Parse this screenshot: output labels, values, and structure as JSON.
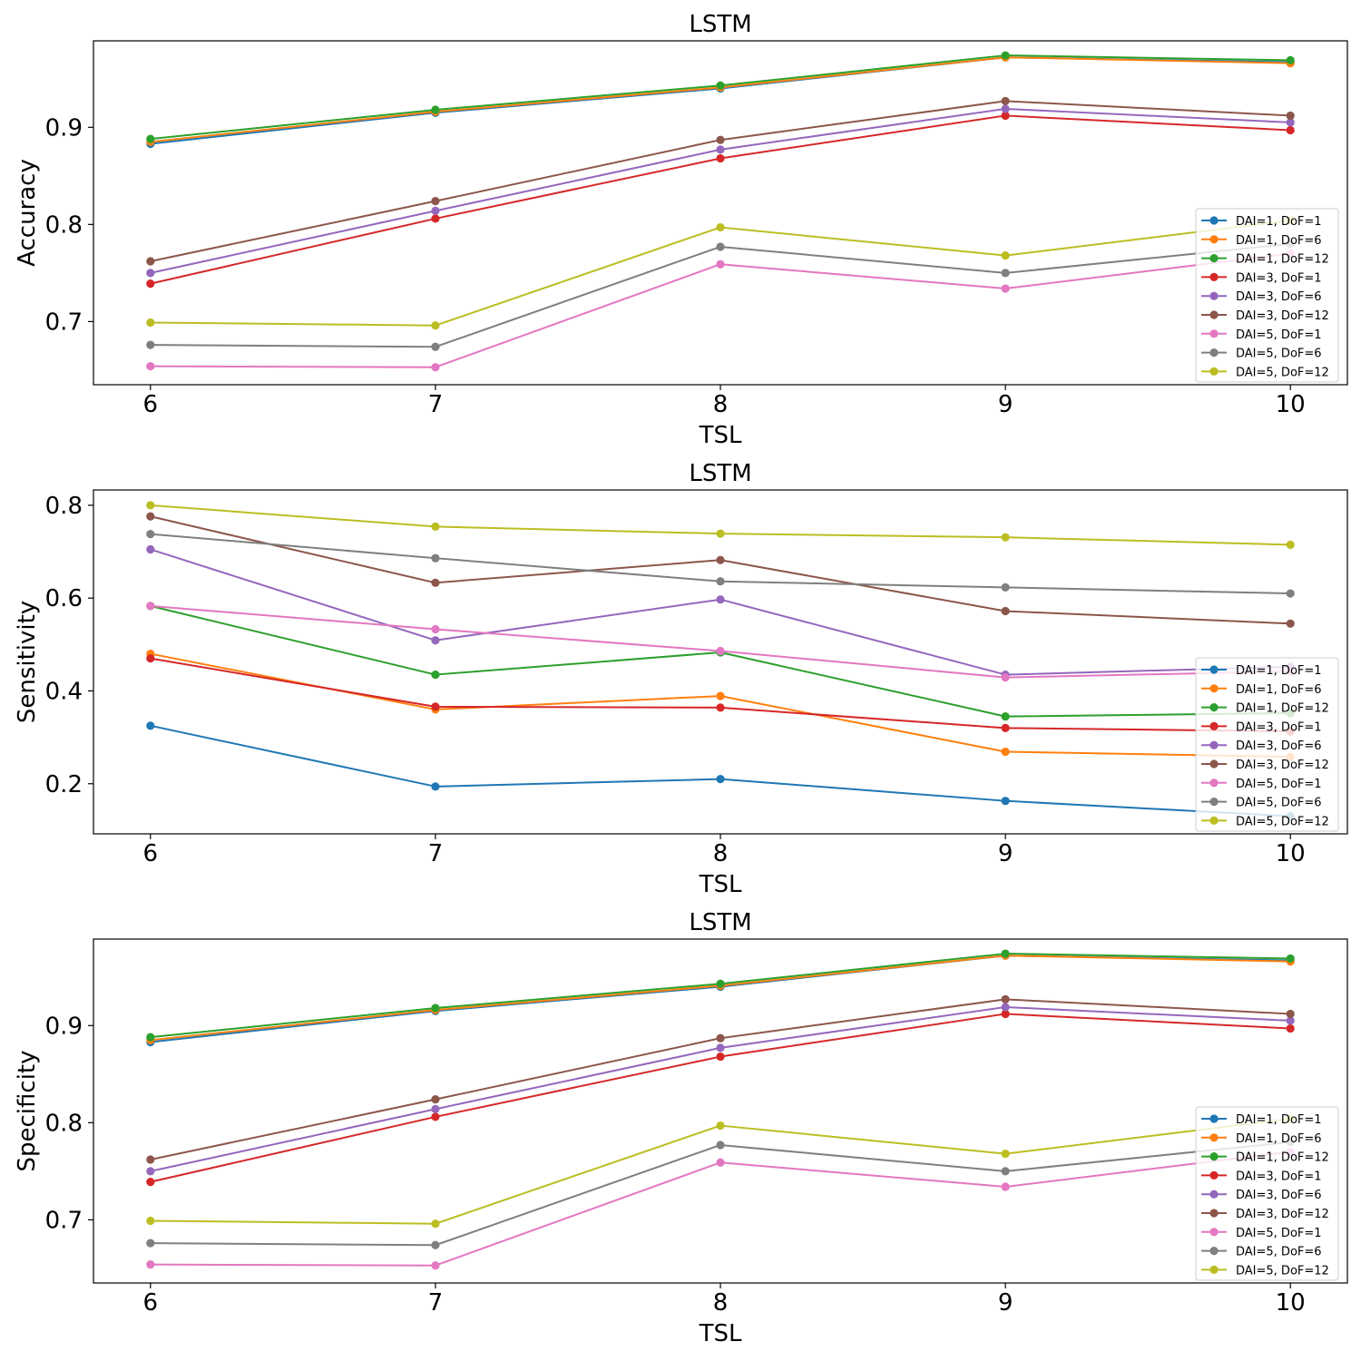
{
  "chart_data": [
    {
      "type": "line",
      "title": "LSTM",
      "xlabel": "TSL",
      "ylabel": "Accuracy",
      "x": [
        6,
        7,
        8,
        9,
        10
      ],
      "xticks": [
        "6",
        "7",
        "8",
        "9",
        "10"
      ],
      "xlim": [
        5.8,
        10.2
      ],
      "ylim": [
        0.635,
        0.989
      ],
      "yticks": [
        0.7,
        0.8,
        0.9
      ],
      "ytick_labels": [
        "0.7",
        "0.8",
        "0.9"
      ],
      "grid": false,
      "legend_position": "right",
      "series": [
        {
          "name": "DAI=1, DoF=1",
          "color": "#1f77b4",
          "values": [
            0.883,
            0.915,
            0.94,
            0.972,
            0.967
          ]
        },
        {
          "name": "DAI=1, DoF=6",
          "color": "#ff7f0e",
          "values": [
            0.885,
            0.916,
            0.941,
            0.972,
            0.966
          ]
        },
        {
          "name": "DAI=1, DoF=12",
          "color": "#2ca02c",
          "values": [
            0.888,
            0.918,
            0.943,
            0.974,
            0.969
          ]
        },
        {
          "name": "DAI=3, DoF=1",
          "color": "#d62728",
          "values": [
            0.739,
            0.806,
            0.868,
            0.912,
            0.897
          ]
        },
        {
          "name": "DAI=3, DoF=6",
          "color": "#9467bd",
          "values": [
            0.75,
            0.814,
            0.877,
            0.919,
            0.905
          ]
        },
        {
          "name": "DAI=3, DoF=12",
          "color": "#8c564b",
          "values": [
            0.762,
            0.824,
            0.887,
            0.927,
            0.912
          ]
        },
        {
          "name": "DAI=5, DoF=1",
          "color": "#e377c2",
          "values": [
            0.654,
            0.653,
            0.759,
            0.734,
            0.77
          ]
        },
        {
          "name": "DAI=5, DoF=6",
          "color": "#7f7f7f",
          "values": [
            0.676,
            0.674,
            0.777,
            0.75,
            0.78
          ]
        },
        {
          "name": "DAI=5, DoF=12",
          "color": "#bcbd22",
          "values": [
            0.699,
            0.696,
            0.797,
            0.768,
            0.804
          ]
        }
      ]
    },
    {
      "type": "line",
      "title": "LSTM",
      "xlabel": "TSL",
      "ylabel": "Sensitivity",
      "x": [
        6,
        7,
        8,
        9,
        10
      ],
      "xticks": [
        "6",
        "7",
        "8",
        "9",
        "10"
      ],
      "xlim": [
        5.8,
        10.2
      ],
      "ylim": [
        0.092,
        0.833
      ],
      "yticks": [
        0.2,
        0.4,
        0.6,
        0.8
      ],
      "ytick_labels": [
        "0.2",
        "0.4",
        "0.6",
        "0.8"
      ],
      "grid": false,
      "legend_position": "right",
      "series": [
        {
          "name": "DAI=1, DoF=1",
          "color": "#1f77b4",
          "values": [
            0.325,
            0.194,
            0.21,
            0.163,
            0.13
          ]
        },
        {
          "name": "DAI=1, DoF=6",
          "color": "#ff7f0e",
          "values": [
            0.48,
            0.36,
            0.389,
            0.269,
            0.258
          ]
        },
        {
          "name": "DAI=1, DoF=12",
          "color": "#2ca02c",
          "values": [
            0.583,
            0.435,
            0.483,
            0.345,
            0.352
          ]
        },
        {
          "name": "DAI=3, DoF=1",
          "color": "#d62728",
          "values": [
            0.47,
            0.366,
            0.364,
            0.32,
            0.313
          ]
        },
        {
          "name": "DAI=3, DoF=6",
          "color": "#9467bd",
          "values": [
            0.705,
            0.509,
            0.597,
            0.435,
            0.452
          ]
        },
        {
          "name": "DAI=3, DoF=12",
          "color": "#8c564b",
          "values": [
            0.776,
            0.633,
            0.682,
            0.572,
            0.545
          ]
        },
        {
          "name": "DAI=5, DoF=1",
          "color": "#e377c2",
          "values": [
            0.583,
            0.533,
            0.486,
            0.429,
            0.442
          ]
        },
        {
          "name": "DAI=5, DoF=6",
          "color": "#7f7f7f",
          "values": [
            0.738,
            0.686,
            0.636,
            0.623,
            0.61
          ]
        },
        {
          "name": "DAI=5, DoF=12",
          "color": "#bcbd22",
          "values": [
            0.8,
            0.754,
            0.739,
            0.731,
            0.715
          ]
        }
      ]
    },
    {
      "type": "line",
      "title": "LSTM",
      "xlabel": "TSL",
      "ylabel": "Specificity",
      "x": [
        6,
        7,
        8,
        9,
        10
      ],
      "xticks": [
        "6",
        "7",
        "8",
        "9",
        "10"
      ],
      "xlim": [
        5.8,
        10.2
      ],
      "ylim": [
        0.635,
        0.989
      ],
      "yticks": [
        0.7,
        0.8,
        0.9
      ],
      "ytick_labels": [
        "0.7",
        "0.8",
        "0.9"
      ],
      "grid": false,
      "legend_position": "right",
      "series": [
        {
          "name": "DAI=1, DoF=1",
          "color": "#1f77b4",
          "values": [
            0.883,
            0.915,
            0.94,
            0.972,
            0.967
          ]
        },
        {
          "name": "DAI=1, DoF=6",
          "color": "#ff7f0e",
          "values": [
            0.885,
            0.916,
            0.941,
            0.972,
            0.966
          ]
        },
        {
          "name": "DAI=1, DoF=12",
          "color": "#2ca02c",
          "values": [
            0.888,
            0.918,
            0.943,
            0.974,
            0.969
          ]
        },
        {
          "name": "DAI=3, DoF=1",
          "color": "#d62728",
          "values": [
            0.739,
            0.806,
            0.868,
            0.912,
            0.897
          ]
        },
        {
          "name": "DAI=3, DoF=6",
          "color": "#9467bd",
          "values": [
            0.75,
            0.814,
            0.877,
            0.919,
            0.905
          ]
        },
        {
          "name": "DAI=3, DoF=12",
          "color": "#8c564b",
          "values": [
            0.762,
            0.824,
            0.887,
            0.927,
            0.912
          ]
        },
        {
          "name": "DAI=5, DoF=1",
          "color": "#e377c2",
          "values": [
            0.654,
            0.653,
            0.759,
            0.734,
            0.77
          ]
        },
        {
          "name": "DAI=5, DoF=6",
          "color": "#7f7f7f",
          "values": [
            0.676,
            0.674,
            0.777,
            0.75,
            0.78
          ]
        },
        {
          "name": "DAI=5, DoF=12",
          "color": "#bcbd22",
          "values": [
            0.699,
            0.696,
            0.797,
            0.768,
            0.804
          ]
        }
      ]
    }
  ]
}
